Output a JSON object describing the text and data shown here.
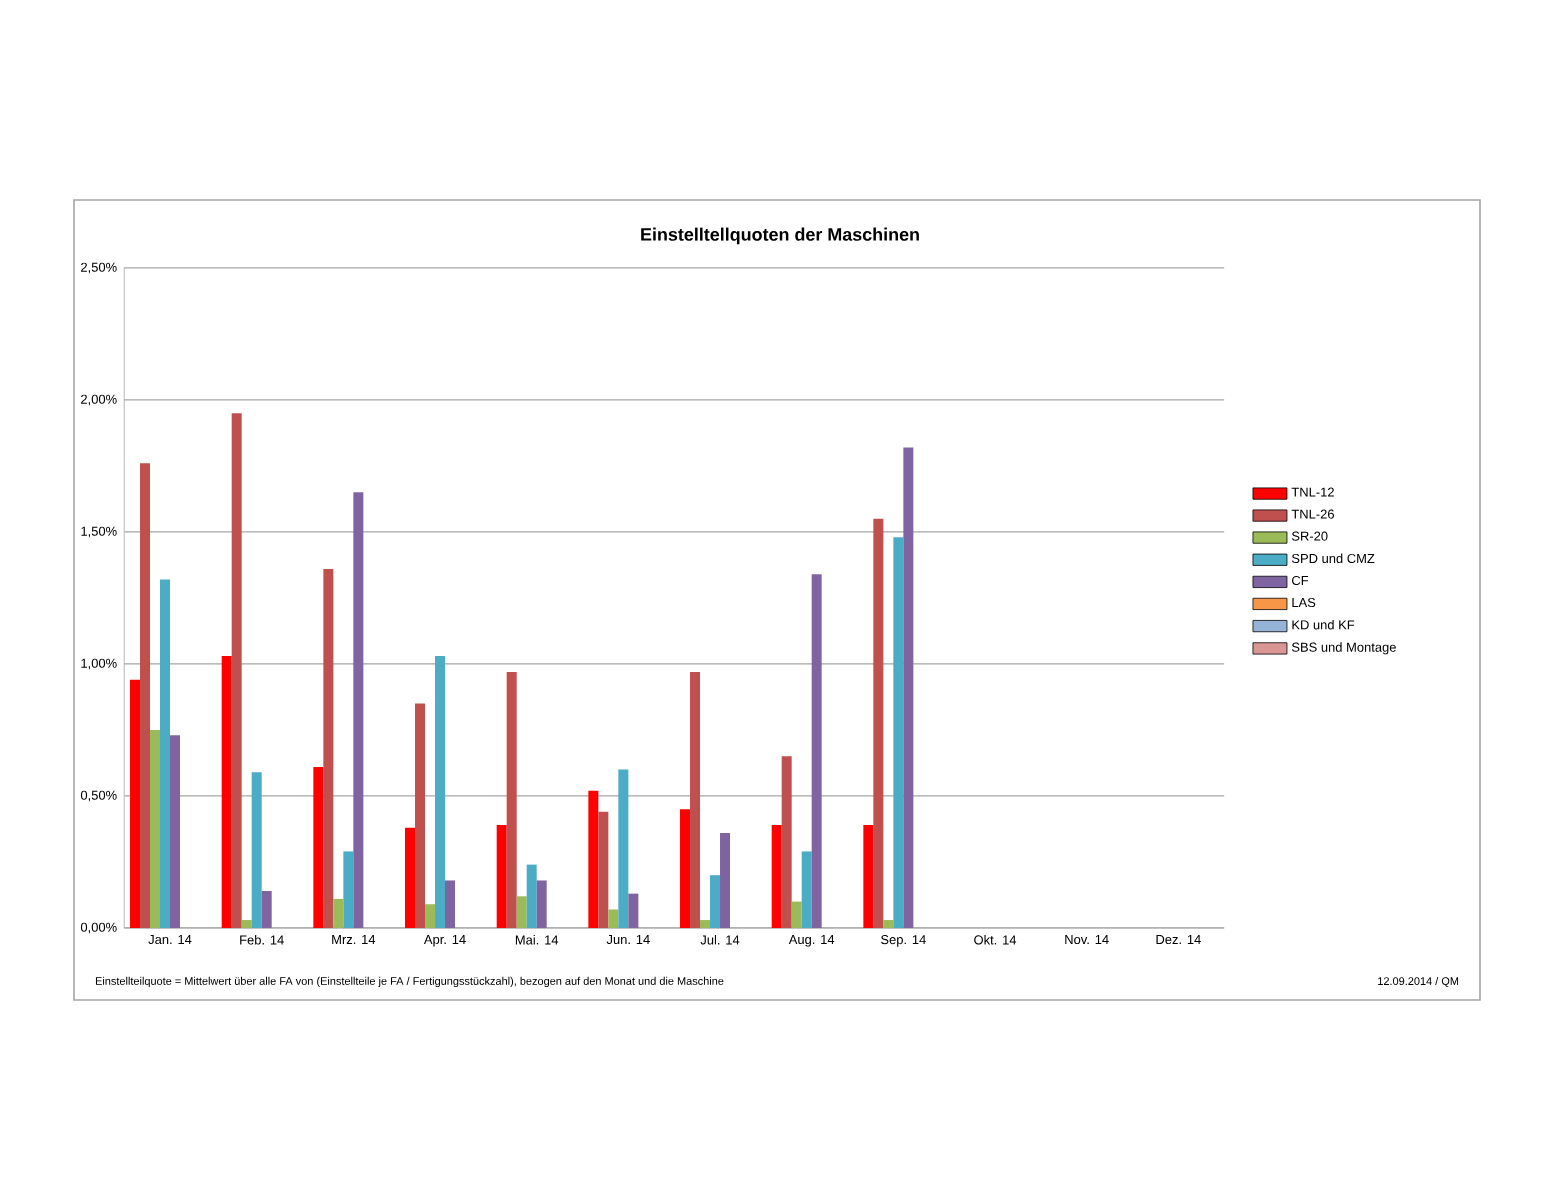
{
  "chart_data": {
    "type": "bar",
    "title": "Einstelltellquoten der Maschinen",
    "categories": [
      "Jan. 14",
      "Feb. 14",
      "Mrz. 14",
      "Apr. 14",
      "Mai. 14",
      "Jun. 14",
      "Jul. 14",
      "Aug. 14",
      "Sep. 14",
      "Okt. 14",
      "Nov. 14",
      "Dez. 14"
    ],
    "series": [
      {
        "name": "TNL-12",
        "color": "#ff0000",
        "values": [
          0.94,
          1.03,
          0.61,
          0.38,
          0.39,
          0.52,
          0.45,
          0.39,
          0.39,
          null,
          null,
          null
        ]
      },
      {
        "name": "TNL-26",
        "color": "#c0504d",
        "values": [
          1.76,
          1.95,
          1.36,
          0.85,
          0.97,
          0.44,
          0.97,
          0.65,
          1.55,
          null,
          null,
          null
        ]
      },
      {
        "name": "SR-20",
        "color": "#9bbb59",
        "values": [
          0.75,
          0.03,
          0.11,
          0.09,
          0.12,
          0.07,
          0.03,
          0.1,
          0.03,
          null,
          null,
          null
        ]
      },
      {
        "name": "SPD und CMZ",
        "color": "#4bacc6",
        "values": [
          1.32,
          0.59,
          0.29,
          1.03,
          0.24,
          0.6,
          0.2,
          0.29,
          1.48,
          null,
          null,
          null
        ]
      },
      {
        "name": "CF",
        "color": "#8064a2",
        "values": [
          0.73,
          0.14,
          1.65,
          0.18,
          0.18,
          0.13,
          0.36,
          1.34,
          1.82,
          null,
          null,
          null
        ]
      },
      {
        "name": "LAS",
        "color": "#f79646",
        "values": [
          null,
          null,
          null,
          null,
          null,
          null,
          null,
          null,
          null,
          null,
          null,
          null
        ]
      },
      {
        "name": "KD und KF",
        "color": "#95b3d7",
        "values": [
          null,
          null,
          null,
          null,
          null,
          null,
          null,
          null,
          null,
          null,
          null,
          null
        ]
      },
      {
        "name": "SBS und Montage",
        "color": "#d99694",
        "values": [
          null,
          null,
          null,
          null,
          null,
          null,
          null,
          null,
          null,
          null,
          null,
          null
        ]
      }
    ],
    "ylim": [
      0,
      2.5
    ],
    "yticks": [
      {
        "value": 0,
        "label": "0,00%"
      },
      {
        "value": 0.5,
        "label": "0,50%"
      },
      {
        "value": 1,
        "label": "1,00%"
      },
      {
        "value": 1.5,
        "label": "1,50%"
      },
      {
        "value": 2,
        "label": "2,00%"
      },
      {
        "value": 2.5,
        "label": "2,50%"
      }
    ],
    "grid": "y",
    "legend": "right",
    "annotations": [
      "Einstellteilquote = Mittelwert über alle FA von (Einstellteile je FA / Fertigungsstückzahl), bezogen auf den Monat und die Maschine",
      "12.09.2014 / QM"
    ]
  }
}
